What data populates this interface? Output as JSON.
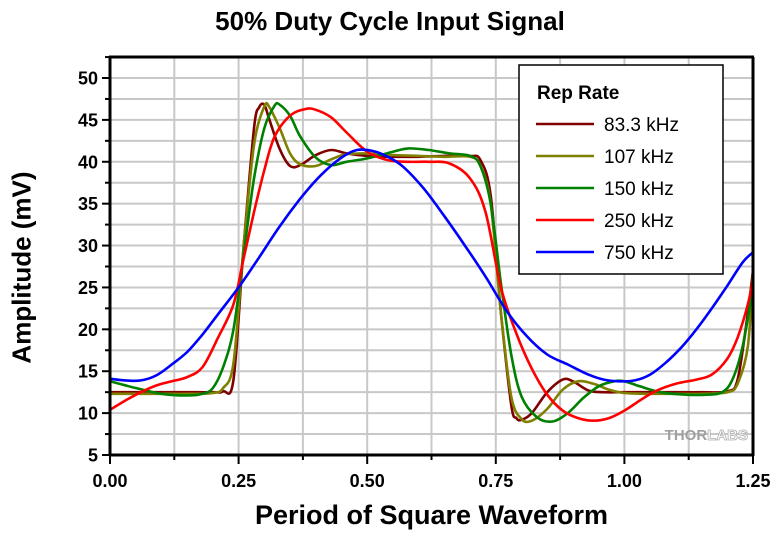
{
  "chart_data": {
    "type": "line",
    "title": "50% Duty Cycle Input Signal",
    "xlabel": "Period of Square Waveform",
    "ylabel": "Amplitude (mV)",
    "xlim": [
      0,
      1.25
    ],
    "ylim": [
      5,
      52.5
    ],
    "xticks": [
      "0.00",
      "0.25",
      "0.50",
      "0.75",
      "1.00",
      "1.25"
    ],
    "xtick_values": [
      0,
      0.25,
      0.5,
      0.75,
      1.0,
      1.25
    ],
    "yticks": [
      "5",
      "10",
      "15",
      "20",
      "25",
      "30",
      "35",
      "40",
      "45",
      "50"
    ],
    "ytick_values": [
      5,
      10,
      15,
      20,
      25,
      30,
      35,
      40,
      45,
      50
    ],
    "grid": true,
    "legend": {
      "title": "Rep Rate",
      "position": "top-right"
    },
    "watermark": "THORLABS",
    "series": [
      {
        "name": "83.3 kHz",
        "color": "#800000",
        "x": [
          0,
          0.05,
          0.1,
          0.15,
          0.2,
          0.22,
          0.24,
          0.26,
          0.28,
          0.29,
          0.3,
          0.31,
          0.33,
          0.35,
          0.37,
          0.4,
          0.43,
          0.46,
          0.5,
          0.55,
          0.6,
          0.65,
          0.7,
          0.72,
          0.74,
          0.76,
          0.78,
          0.79,
          0.8,
          0.82,
          0.85,
          0.88,
          0.9,
          0.93,
          0.96,
          1.0,
          1.05,
          1.1,
          1.15,
          1.2,
          1.22,
          1.24,
          1.25
        ],
        "y": [
          12.5,
          12.5,
          12.5,
          12.5,
          12.5,
          12.6,
          14,
          30,
          44,
          46.5,
          46.8,
          45,
          41.5,
          39.5,
          39.6,
          40.8,
          41.4,
          41,
          40.7,
          40.6,
          40.6,
          40.7,
          40.7,
          40.2,
          36,
          22,
          11,
          9.4,
          9.2,
          10,
          12.5,
          14,
          13.8,
          12.7,
          12.5,
          12.5,
          12.5,
          12.5,
          12.5,
          12.6,
          14,
          22,
          27
        ]
      },
      {
        "name": "107 kHz",
        "color": "#808000",
        "x": [
          0,
          0.05,
          0.1,
          0.15,
          0.2,
          0.22,
          0.24,
          0.26,
          0.28,
          0.3,
          0.31,
          0.33,
          0.35,
          0.37,
          0.4,
          0.43,
          0.46,
          0.5,
          0.55,
          0.6,
          0.65,
          0.7,
          0.72,
          0.74,
          0.76,
          0.78,
          0.8,
          0.82,
          0.85,
          0.88,
          0.91,
          0.94,
          0.97,
          1.0,
          1.05,
          1.1,
          1.15,
          1.2,
          1.22,
          1.24,
          1.25
        ],
        "y": [
          12.3,
          12.3,
          12.3,
          12.3,
          12.4,
          13,
          16,
          30,
          42,
          46.6,
          46.5,
          44,
          41,
          39.7,
          39.5,
          40.3,
          40.9,
          41,
          40.8,
          40.7,
          40.6,
          40.6,
          39.5,
          35,
          22,
          12,
          9.3,
          9.1,
          10.5,
          12.8,
          13.8,
          13.5,
          12.8,
          12.4,
          12.3,
          12.3,
          12.3,
          12.5,
          13.5,
          18,
          27
        ]
      },
      {
        "name": "150 kHz",
        "color": "#008000",
        "x": [
          0,
          0.05,
          0.1,
          0.15,
          0.18,
          0.2,
          0.22,
          0.24,
          0.26,
          0.28,
          0.3,
          0.32,
          0.33,
          0.35,
          0.37,
          0.4,
          0.43,
          0.46,
          0.5,
          0.55,
          0.58,
          0.62,
          0.66,
          0.7,
          0.72,
          0.74,
          0.76,
          0.78,
          0.8,
          0.83,
          0.86,
          0.89,
          0.92,
          0.95,
          0.98,
          1.0,
          1.03,
          1.07,
          1.12,
          1.16,
          1.19,
          1.21,
          1.23,
          1.25
        ],
        "y": [
          13.8,
          13,
          12.3,
          12.1,
          12.3,
          13,
          15.5,
          20,
          29,
          38,
          44,
          46.7,
          46.8,
          45.5,
          43,
          40.5,
          39.6,
          40,
          40.4,
          41.2,
          41.6,
          41.4,
          41,
          40.7,
          39.5,
          35,
          25.5,
          17,
          12,
          9.5,
          9,
          10,
          11.8,
          13.2,
          13.8,
          13.8,
          13.2,
          12.5,
          12.2,
          12.2,
          12.5,
          14,
          18,
          25
        ]
      },
      {
        "name": "250 kHz",
        "color": "#ff0000",
        "x": [
          0,
          0.03,
          0.06,
          0.09,
          0.12,
          0.15,
          0.18,
          0.21,
          0.24,
          0.26,
          0.28,
          0.3,
          0.32,
          0.35,
          0.38,
          0.4,
          0.43,
          0.46,
          0.5,
          0.54,
          0.58,
          0.62,
          0.66,
          0.7,
          0.73,
          0.76,
          0.79,
          0.82,
          0.85,
          0.88,
          0.91,
          0.94,
          0.97,
          1.0,
          1.03,
          1.06,
          1.1,
          1.14,
          1.17,
          1.2,
          1.22,
          1.24,
          1.25
        ],
        "y": [
          10.4,
          11.5,
          12.5,
          13.3,
          13.8,
          14.3,
          15.5,
          19,
          23,
          28.5,
          34,
          39,
          43,
          45.5,
          46.3,
          46.2,
          45.3,
          43.5,
          41.2,
          40.2,
          40,
          40,
          39.8,
          38,
          34,
          25,
          19.5,
          15.3,
          12.2,
          10.3,
          9.4,
          9.1,
          9.4,
          10.3,
          11.5,
          12.6,
          13.5,
          14,
          14.6,
          16.5,
          19,
          23,
          26
        ]
      },
      {
        "name": "750 kHz",
        "color": "#0000ff",
        "x": [
          0,
          0.03,
          0.06,
          0.09,
          0.12,
          0.15,
          0.18,
          0.21,
          0.25,
          0.29,
          0.33,
          0.37,
          0.41,
          0.45,
          0.48,
          0.51,
          0.54,
          0.57,
          0.61,
          0.65,
          0.69,
          0.73,
          0.77,
          0.81,
          0.85,
          0.89,
          0.93,
          0.96,
          0.99,
          1.02,
          1.05,
          1.08,
          1.11,
          1.14,
          1.17,
          1.2,
          1.23,
          1.25
        ],
        "y": [
          14.1,
          13.9,
          13.9,
          14.5,
          15.8,
          17.3,
          19.4,
          21.8,
          25,
          28.6,
          32.3,
          35.6,
          38.4,
          40.5,
          41.4,
          41.3,
          40.6,
          39.4,
          36.8,
          33.5,
          30,
          26.3,
          22.3,
          19.2,
          17,
          15.8,
          14.6,
          14,
          13.8,
          13.9,
          14.6,
          16,
          17.8,
          20,
          22.5,
          25.2,
          28,
          29.2
        ]
      }
    ]
  }
}
